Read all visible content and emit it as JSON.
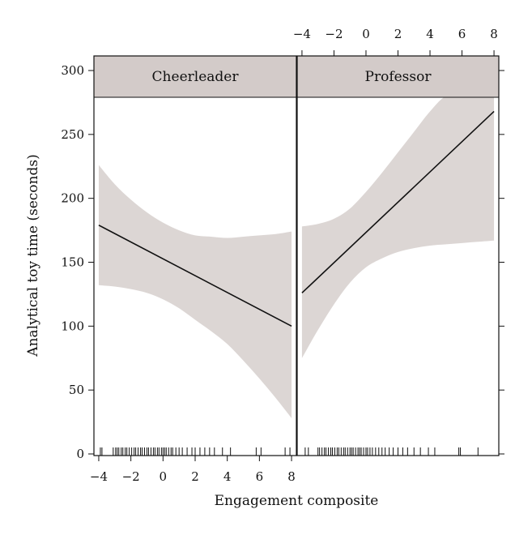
{
  "chart_data": {
    "type": "line",
    "layout": "faceted",
    "xlabel": "Engagement composite",
    "ylabel": "Analytical toy time (seconds)",
    "xlim": [
      -4.3,
      8.3
    ],
    "ylim": [
      0,
      300
    ],
    "x_ticks": [
      -4,
      -2,
      0,
      2,
      4,
      6,
      8
    ],
    "x_tick_labels": [
      "−4",
      "−2",
      "0",
      "2",
      "4",
      "6",
      "8"
    ],
    "y_ticks": [
      0,
      50,
      100,
      150,
      200,
      250,
      300
    ],
    "y_tick_labels": [
      "0",
      "50",
      "100",
      "150",
      "200",
      "250",
      "300"
    ],
    "colors": {
      "band": "#dcd6d4",
      "line": "#111111",
      "strip": "#d3cbc9"
    },
    "panels": [
      {
        "name": "Cheerleader",
        "line": {
          "x": [
            -4,
            8
          ],
          "y": [
            179,
            100
          ]
        },
        "band": {
          "x": [
            -4,
            -3,
            -2,
            -1,
            0,
            1,
            2,
            3,
            4,
            5,
            6,
            7,
            8
          ],
          "upper": [
            226,
            211,
            199,
            189,
            181,
            175,
            171,
            170,
            169,
            170,
            171,
            172,
            174
          ],
          "lower": [
            132,
            131,
            129,
            126,
            121,
            114,
            105,
            96,
            86,
            73,
            59,
            44,
            28
          ]
        },
        "rug": [
          -3.9,
          -3.8,
          -3.1,
          -2.95,
          -2.85,
          -2.75,
          -2.6,
          -2.5,
          -2.35,
          -2.25,
          -2.1,
          -1.95,
          -1.8,
          -1.7,
          -1.55,
          -1.4,
          -1.3,
          -1.15,
          -1.0,
          -0.9,
          -0.75,
          -0.6,
          -0.5,
          -0.35,
          -0.25,
          -0.1,
          0.0,
          0.1,
          0.2,
          0.35,
          0.5,
          0.6,
          0.8,
          1.0,
          1.2,
          1.5,
          1.8,
          2.0,
          2.3,
          2.6,
          2.9,
          3.2,
          3.7,
          4.2,
          5.8,
          6.1,
          7.6,
          7.9
        ]
      },
      {
        "name": "Professor",
        "line": {
          "x": [
            -4,
            8
          ],
          "y": [
            126,
            268
          ]
        },
        "band": {
          "x": [
            -4,
            -3,
            -2,
            -1,
            0,
            1,
            2,
            3,
            4,
            5,
            6,
            7,
            8
          ],
          "upper": [
            178,
            180,
            184,
            192,
            205,
            220,
            236,
            252,
            268,
            280,
            280,
            280,
            280
          ],
          "lower": [
            75,
            97,
            117,
            134,
            146,
            153,
            158,
            161,
            163,
            164,
            165,
            166,
            167
          ]
        },
        "rug": [
          -3.8,
          -3.6,
          -3.0,
          -2.9,
          -2.75,
          -2.6,
          -2.5,
          -2.35,
          -2.2,
          -2.1,
          -1.95,
          -1.8,
          -1.7,
          -1.55,
          -1.4,
          -1.3,
          -1.15,
          -1.0,
          -0.9,
          -0.8,
          -0.65,
          -0.5,
          -0.4,
          -0.3,
          -0.15,
          0.0,
          0.1,
          0.25,
          0.4,
          0.6,
          0.8,
          1.0,
          1.2,
          1.45,
          1.7,
          2.0,
          2.3,
          2.6,
          3.0,
          3.4,
          3.9,
          4.3,
          5.8,
          5.9,
          7.0
        ]
      }
    ]
  }
}
